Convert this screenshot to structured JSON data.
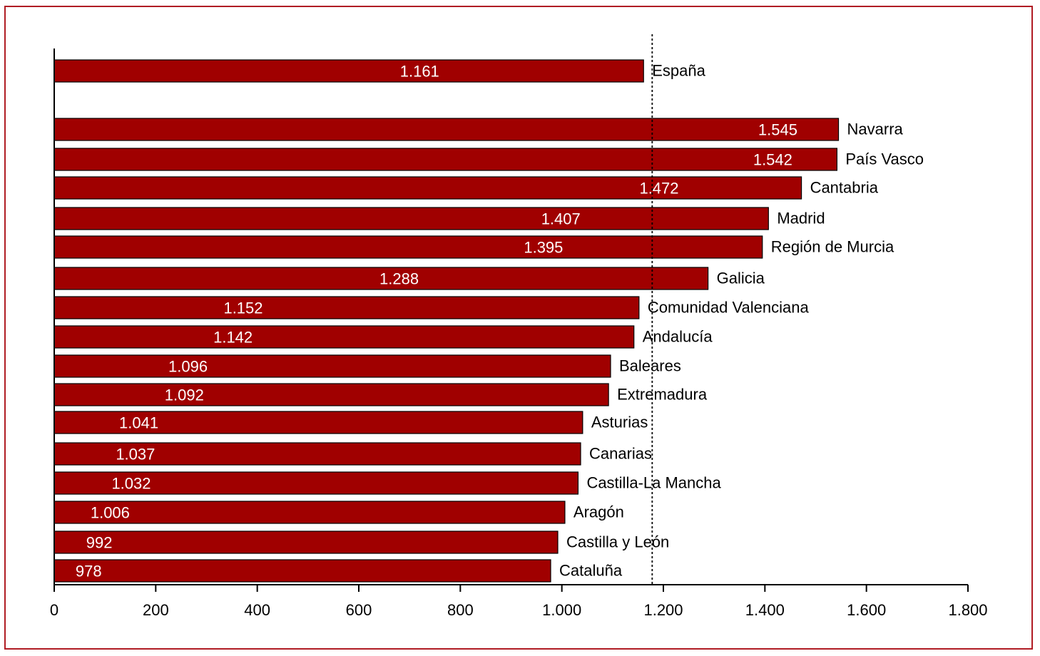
{
  "chart_data": {
    "type": "bar",
    "orientation": "horizontal",
    "title": "",
    "xlabel": "",
    "ylabel": "",
    "xlim": [
      0,
      1800
    ],
    "x_ticks": [
      0,
      200,
      400,
      600,
      800,
      1000,
      1200,
      1400,
      1600,
      1800
    ],
    "x_tick_labels": [
      "0",
      "200",
      "400",
      "600",
      "800",
      "1.000",
      "1.200",
      "1.400",
      "1.600",
      "1.800"
    ],
    "grid": false,
    "legend": "none",
    "bar_color": "#a00000",
    "frame_color": "#b01c24",
    "reference_line": {
      "value": 1178,
      "style": "dotted"
    },
    "categories": [
      "España",
      "Navarra",
      "País Vasco",
      "Cantabria",
      "Madrid",
      "Región de Murcia",
      "Galicia",
      "Comunidad Valenciana",
      "Andalucía",
      "Baleares",
      "Extremadura",
      "Asturias",
      "Canarias",
      "Castilla-La Mancha",
      "Aragón",
      "Castilla y León",
      "Cataluña"
    ],
    "values": [
      1161,
      1545,
      1542,
      1472,
      1407,
      1395,
      1288,
      1152,
      1142,
      1096,
      1092,
      1041,
      1037,
      1032,
      1006,
      992,
      978
    ],
    "value_labels": [
      "1.161",
      "1.545",
      "1.542",
      "1.472",
      "1.407",
      "1.395",
      "1.288",
      "1.152",
      "1.142",
      "1.096",
      "1.092",
      "1.041",
      "1.037",
      "1.032",
      "1.006",
      "992",
      "978"
    ]
  }
}
